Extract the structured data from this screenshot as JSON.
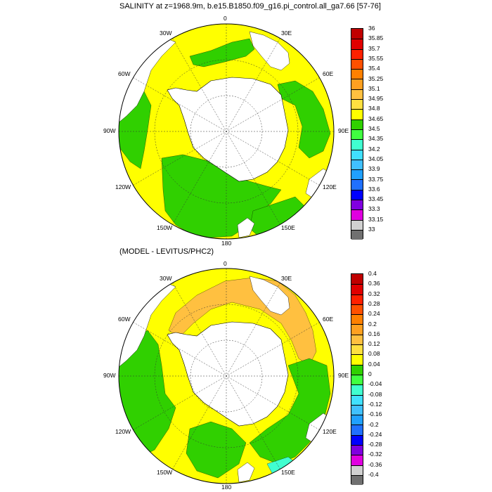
{
  "panel1": {
    "title": "SALINITY at z=1968.9m, b.e15.B1850.f09_g16.pi_control.all_ga7.66 [57-76]",
    "lon_labels": [
      "0",
      "30E",
      "60E",
      "90E",
      "120E",
      "150E",
      "180",
      "150W",
      "120W",
      "90W",
      "60W",
      "30W"
    ],
    "colorbar": {
      "labels": [
        "36",
        "35.85",
        "35.7",
        "35.55",
        "35.4",
        "35.25",
        "35.1",
        "34.95",
        "34.8",
        "34.65",
        "34.5",
        "34.35",
        "34.2",
        "34.05",
        "33.9",
        "33.75",
        "33.6",
        "33.45",
        "33.3",
        "33.15",
        "33"
      ],
      "colors": [
        "#c00000",
        "#e00000",
        "#ff2000",
        "#ff5000",
        "#ff8000",
        "#ffa020",
        "#ffc040",
        "#ffe040",
        "#ffff00",
        "#30d000",
        "#40ff40",
        "#40ffd0",
        "#40e0ff",
        "#40c0ff",
        "#20a0ff",
        "#2070ff",
        "#0000ff",
        "#8000e0",
        "#e000e0",
        "#d0d0d0",
        "#707070"
      ]
    }
  },
  "panel2": {
    "title": "(MODEL - LEVITUS/PHC2)",
    "lon_labels": [
      "0",
      "30E",
      "60E",
      "90E",
      "120E",
      "150E",
      "180",
      "150W",
      "120W",
      "90W",
      "60W",
      "30W"
    ],
    "colorbar": {
      "labels": [
        "0.4",
        "0.36",
        "0.32",
        "0.28",
        "0.24",
        "0.2",
        "0.16",
        "0.12",
        "0.08",
        "0.04",
        "0",
        "-0.04",
        "-0.08",
        "-0.12",
        "-0.16",
        "-0.2",
        "-0.24",
        "-0.28",
        "-0.32",
        "-0.36",
        "-0.4"
      ],
      "colors": [
        "#c00000",
        "#e00000",
        "#ff2000",
        "#ff5000",
        "#ff8000",
        "#ffa020",
        "#ffc040",
        "#ffe040",
        "#ffff00",
        "#30d000",
        "#40ff40",
        "#40ffd0",
        "#40e0ff",
        "#40c0ff",
        "#20a0ff",
        "#2070ff",
        "#0000ff",
        "#8000e0",
        "#e000e0",
        "#d0d0d0",
        "#707070"
      ]
    }
  }
}
